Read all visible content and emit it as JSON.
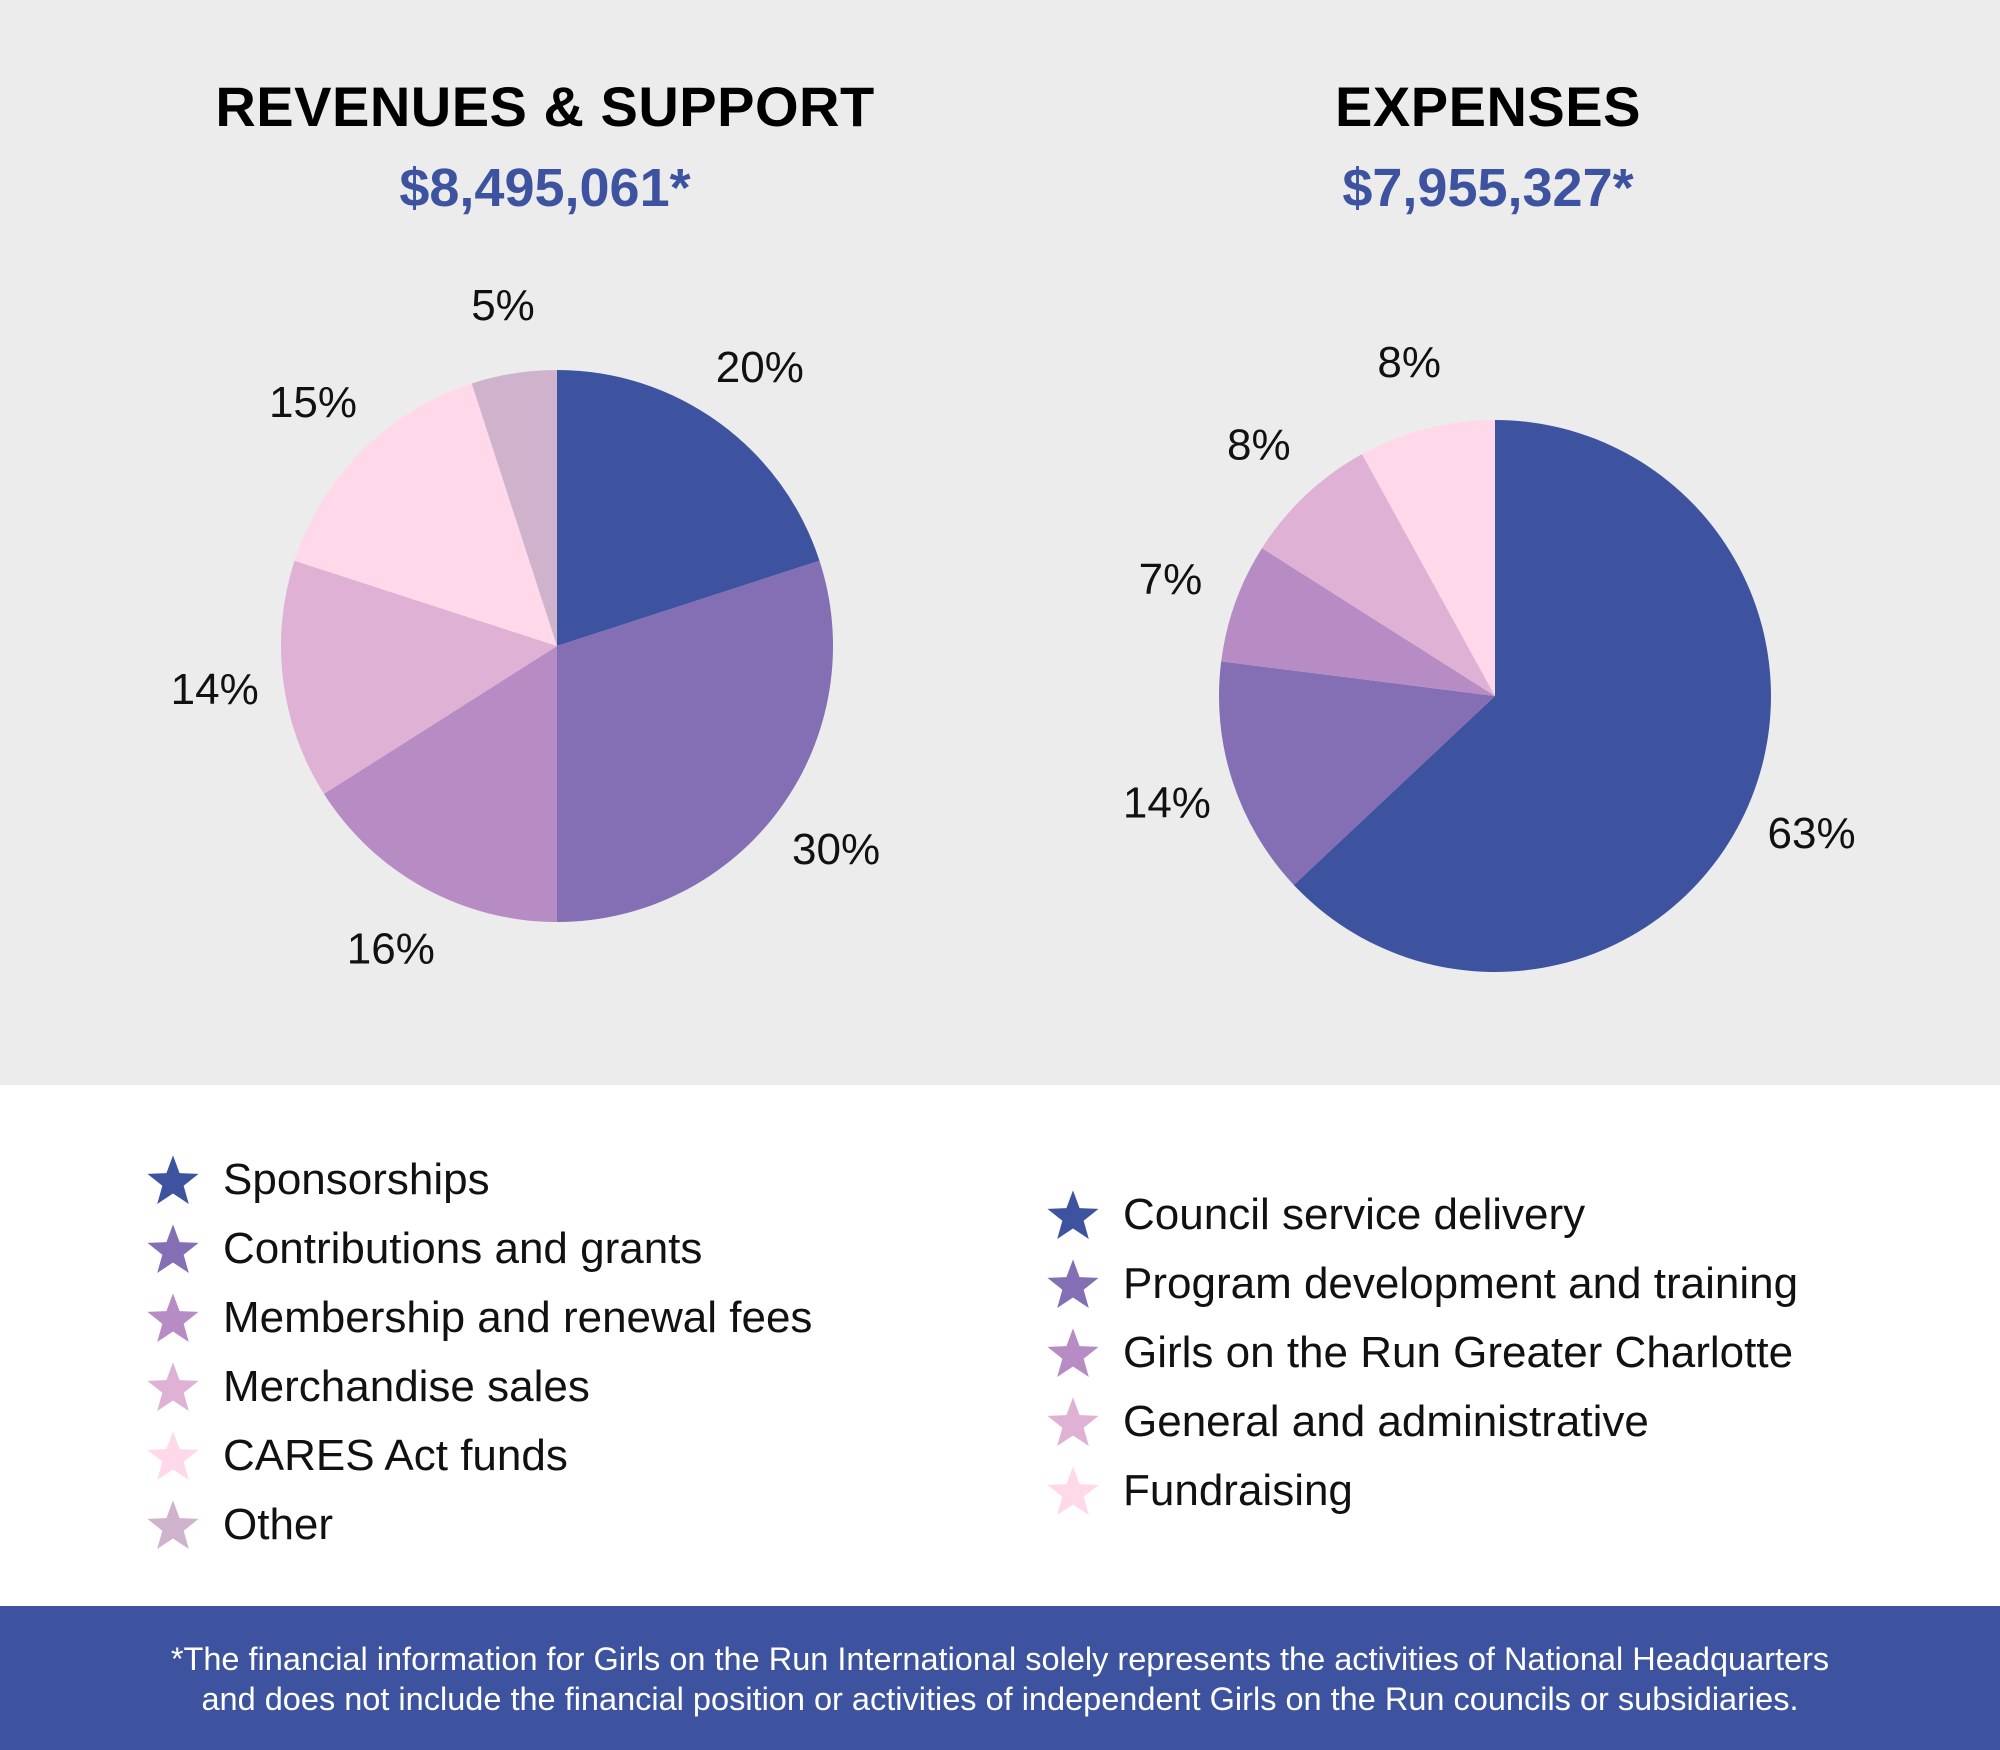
{
  "colors": {
    "panel_bg": "#ececed",
    "total_text": "#3d53a0",
    "footer_bg": "#3d53a0"
  },
  "revenues": {
    "title": "REVENUES & SUPPORT",
    "total": "$8,495,061*"
  },
  "expenses": {
    "title": "EXPENSES",
    "total": "$7,955,327*"
  },
  "chart_data": [
    {
      "type": "pie",
      "title": "REVENUES & SUPPORT",
      "subtitle": "$8,495,061*",
      "categories": [
        "Sponsorships",
        "Contributions and grants",
        "Membership and renewal fees",
        "Merchandise sales",
        "CARES Act funds",
        "Other"
      ],
      "values": [
        20,
        30,
        16,
        14,
        15,
        5
      ],
      "labels": [
        "20%",
        "30%",
        "16%",
        "14%",
        "15%",
        "5%"
      ],
      "colors": [
        "#3d53a0",
        "#846eb4",
        "#b78bc3",
        "#dfb1d4",
        "#ffd8e9",
        "#cfb2cb"
      ],
      "legend": "bottom"
    },
    {
      "type": "pie",
      "title": "EXPENSES",
      "subtitle": "$7,955,327*",
      "categories": [
        "Council service delivery",
        "Program development and training",
        "Girls on the Run Greater Charlotte",
        "General and administrative",
        "Fundraising"
      ],
      "values": [
        63,
        14,
        7,
        8,
        8
      ],
      "labels": [
        "63%",
        "14%",
        "7%",
        "8%",
        "8%"
      ],
      "colors": [
        "#3d53a0",
        "#846eb4",
        "#b78bc3",
        "#dfb1d4",
        "#ffd8e9"
      ],
      "legend": "bottom"
    }
  ],
  "footer": {
    "line1": "*The financial information for Girls on the Run International solely represents the activities of National Headquarters",
    "line2": "and does not include the financial position or activities of independent Girls on the Run councils or subsidiaries."
  }
}
